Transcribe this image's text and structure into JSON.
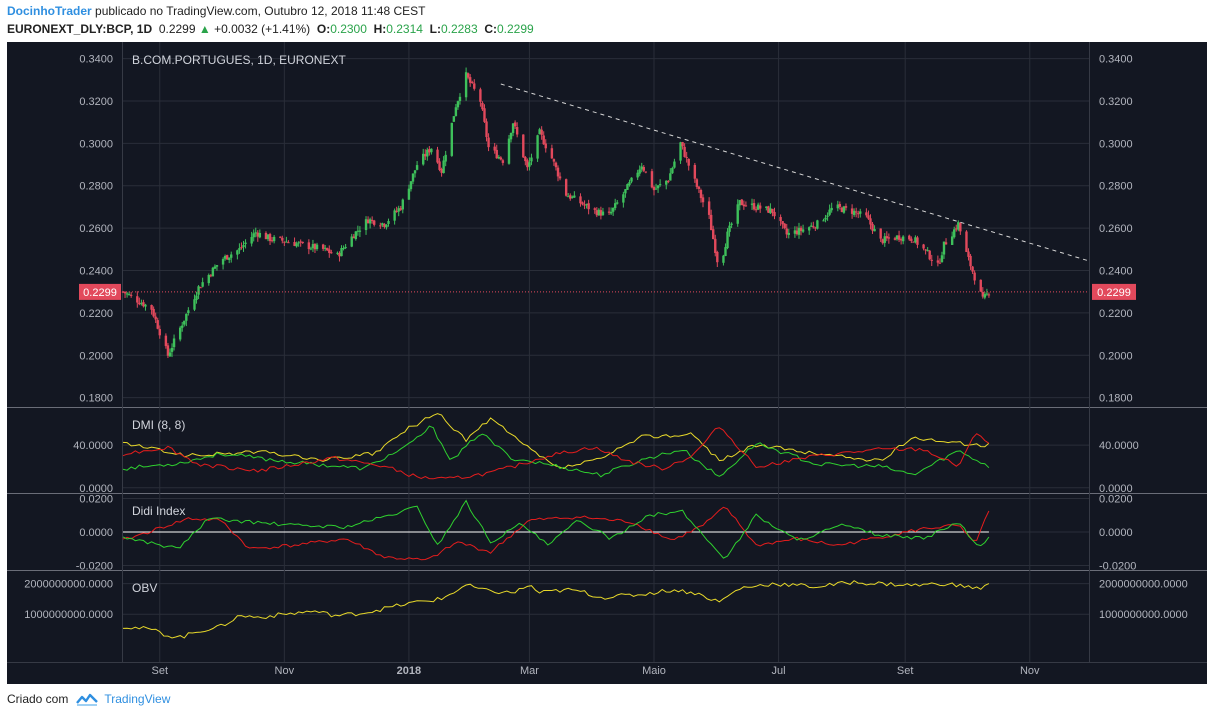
{
  "header": {
    "author": "DocinhoTrader",
    "published_text": "publicado no TradingView.com, Outubro 12, 2018 11:48 CEST",
    "symbol": "EURONEXT_DLY:BCP, 1D",
    "price": "0.2299",
    "change_icon": "up-triangle-icon",
    "change": "+0.0032 (+1.41%)",
    "o_label": "O:",
    "o_value": "0.2300",
    "h_label": "H:",
    "h_value": "0.2314",
    "l_label": "L:",
    "l_value": "0.2283",
    "c_label": "C:",
    "c_value": "0.2299"
  },
  "footer": {
    "created_with": "Criado com",
    "brand": "TradingView",
    "logo_icon": "tradingview-logo-icon"
  },
  "colors": {
    "background": "#131722",
    "grid": "#2a2e39",
    "up": "#3ec05b",
    "down": "#e2495c",
    "text": "#b2b5be",
    "yellow": "#e8d92a",
    "green": "#2fd12f",
    "red": "#e41d1d",
    "white": "#ffffff",
    "price_line": "#e2495c",
    "label_bg": "#e2495c"
  },
  "chart_data": [
    {
      "type": "candlestick",
      "pane": "price",
      "title": "B.COM.PORTUGUES, 1D, EURONEXT",
      "y_ticks": [
        "0.3400",
        "0.3200",
        "0.3000",
        "0.2800",
        "0.2600",
        "0.2400",
        "0.2200",
        "0.2000",
        "0.1800"
      ],
      "y_tick_values": [
        0.34,
        0.32,
        0.3,
        0.28,
        0.26,
        0.24,
        0.22,
        0.2,
        0.18
      ],
      "ylim": [
        0.177,
        0.345
      ],
      "x_ticks": [
        "Set",
        "Nov",
        "2018",
        "Mar",
        "Maio",
        "Jul",
        "Set",
        "Nov"
      ],
      "x_tick_dates": [
        "2017-09-01",
        "2017-11-01",
        "2018-01-01",
        "2018-03-01",
        "2018-05-01",
        "2018-07-01",
        "2018-09-01",
        "2018-11-01"
      ],
      "xlim": [
        "2017-08-14",
        "2018-11-30"
      ],
      "last_price_label": "0.2299",
      "last_price": 0.2299,
      "trendline": {
        "style": "dashed",
        "from": {
          "date": "2018-02-15",
          "price": 0.328
        },
        "to": {
          "date": "2018-11-30",
          "price": 0.2445
        }
      },
      "close_path": [
        [
          "2017-08-14",
          0.23
        ],
        [
          "2017-08-28",
          0.222
        ],
        [
          "2017-09-05",
          0.2
        ],
        [
          "2017-09-12",
          0.215
        ],
        [
          "2017-09-20",
          0.232
        ],
        [
          "2017-10-01",
          0.245
        ],
        [
          "2017-10-10",
          0.25
        ],
        [
          "2017-10-18",
          0.258
        ],
        [
          "2017-10-25",
          0.255
        ],
        [
          "2017-11-01",
          0.254
        ],
        [
          "2017-11-10",
          0.252
        ],
        [
          "2017-11-20",
          0.25
        ],
        [
          "2017-11-27",
          0.247
        ],
        [
          "2017-12-05",
          0.257
        ],
        [
          "2017-12-12",
          0.264
        ],
        [
          "2017-12-20",
          0.262
        ],
        [
          "2017-12-28",
          0.27
        ],
        [
          "2018-01-05",
          0.29
        ],
        [
          "2018-01-12",
          0.298
        ],
        [
          "2018-01-17",
          0.287
        ],
        [
          "2018-01-24",
          0.318
        ],
        [
          "2018-01-29",
          0.332
        ],
        [
          "2018-02-05",
          0.32
        ],
        [
          "2018-02-09",
          0.298
        ],
        [
          "2018-02-16",
          0.292
        ],
        [
          "2018-02-21",
          0.31
        ],
        [
          "2018-02-28",
          0.288
        ],
        [
          "2018-03-06",
          0.305
        ],
        [
          "2018-03-12",
          0.293
        ],
        [
          "2018-03-19",
          0.276
        ],
        [
          "2018-03-26",
          0.272
        ],
        [
          "2018-04-02",
          0.268
        ],
        [
          "2018-04-09",
          0.266
        ],
        [
          "2018-04-16",
          0.276
        ],
        [
          "2018-04-25",
          0.29
        ],
        [
          "2018-05-01",
          0.278
        ],
        [
          "2018-05-08",
          0.283
        ],
        [
          "2018-05-14",
          0.3
        ],
        [
          "2018-05-21",
          0.282
        ],
        [
          "2018-05-28",
          0.265
        ],
        [
          "2018-06-02",
          0.24
        ],
        [
          "2018-06-06",
          0.257
        ],
        [
          "2018-06-12",
          0.272
        ],
        [
          "2018-06-20",
          0.27
        ],
        [
          "2018-06-28",
          0.268
        ],
        [
          "2018-07-05",
          0.257
        ],
        [
          "2018-07-12",
          0.259
        ],
        [
          "2018-07-20",
          0.262
        ],
        [
          "2018-07-28",
          0.27
        ],
        [
          "2018-08-06",
          0.268
        ],
        [
          "2018-08-13",
          0.265
        ],
        [
          "2018-08-20",
          0.254
        ],
        [
          "2018-08-29",
          0.256
        ],
        [
          "2018-09-05",
          0.255
        ],
        [
          "2018-09-12",
          0.248
        ],
        [
          "2018-09-17",
          0.242
        ],
        [
          "2018-09-20",
          0.252
        ],
        [
          "2018-09-27",
          0.262
        ],
        [
          "2018-10-01",
          0.248
        ],
        [
          "2018-10-05",
          0.237
        ],
        [
          "2018-10-09",
          0.226
        ],
        [
          "2018-10-12",
          0.2299
        ]
      ]
    },
    {
      "type": "line",
      "pane": "DMI",
      "title": "DMI (8, 8)",
      "y_ticks": [
        "40.0000",
        "0.0000"
      ],
      "y_tick_values": [
        40,
        0
      ],
      "ylim": [
        -3,
        73
      ],
      "series": [
        {
          "color": "yellow",
          "points": [
            [
              "2017-08-14",
              42
            ],
            [
              "2017-09-15",
              30
            ],
            [
              "2017-10-20",
              34
            ],
            [
              "2017-11-20",
              26
            ],
            [
              "2017-12-15",
              32
            ],
            [
              "2018-01-01",
              56
            ],
            [
              "2018-01-15",
              70
            ],
            [
              "2018-01-29",
              45
            ],
            [
              "2018-02-10",
              65
            ],
            [
              "2018-02-25",
              42
            ],
            [
              "2018-03-15",
              18
            ],
            [
              "2018-04-05",
              27
            ],
            [
              "2018-04-25",
              48
            ],
            [
              "2018-05-20",
              50
            ],
            [
              "2018-06-02",
              26
            ],
            [
              "2018-06-20",
              40
            ],
            [
              "2018-07-20",
              32
            ],
            [
              "2018-08-20",
              25
            ],
            [
              "2018-09-05",
              48
            ],
            [
              "2018-09-25",
              42
            ],
            [
              "2018-10-12",
              40
            ]
          ]
        },
        {
          "color": "green",
          "points": [
            [
              "2017-08-14",
              18
            ],
            [
              "2017-09-10",
              23
            ],
            [
              "2017-10-01",
              32
            ],
            [
              "2017-11-05",
              24
            ],
            [
              "2017-12-10",
              18
            ],
            [
              "2018-01-01",
              40
            ],
            [
              "2018-01-12",
              58
            ],
            [
              "2018-01-22",
              25
            ],
            [
              "2018-02-05",
              52
            ],
            [
              "2018-02-20",
              28
            ],
            [
              "2018-03-10",
              22
            ],
            [
              "2018-04-05",
              12
            ],
            [
              "2018-04-28",
              28
            ],
            [
              "2018-05-15",
              36
            ],
            [
              "2018-06-02",
              10
            ],
            [
              "2018-06-20",
              42
            ],
            [
              "2018-07-20",
              22
            ],
            [
              "2018-08-20",
              20
            ],
            [
              "2018-09-05",
              12
            ],
            [
              "2018-09-27",
              35
            ],
            [
              "2018-10-12",
              20
            ]
          ]
        },
        {
          "color": "red",
          "points": [
            [
              "2017-08-14",
              32
            ],
            [
              "2017-09-05",
              38
            ],
            [
              "2017-09-20",
              22
            ],
            [
              "2017-10-20",
              16
            ],
            [
              "2017-11-25",
              28
            ],
            [
              "2017-12-20",
              20
            ],
            [
              "2018-01-05",
              10
            ],
            [
              "2018-01-20",
              8
            ],
            [
              "2018-02-10",
              14
            ],
            [
              "2018-02-25",
              22
            ],
            [
              "2018-03-10",
              30
            ],
            [
              "2018-04-01",
              38
            ],
            [
              "2018-04-20",
              24
            ],
            [
              "2018-05-05",
              18
            ],
            [
              "2018-05-20",
              30
            ],
            [
              "2018-06-02",
              58
            ],
            [
              "2018-06-20",
              20
            ],
            [
              "2018-07-20",
              30
            ],
            [
              "2018-08-20",
              36
            ],
            [
              "2018-09-10",
              36
            ],
            [
              "2018-09-27",
              20
            ],
            [
              "2018-10-06",
              52
            ],
            [
              "2018-10-12",
              42
            ]
          ]
        }
      ]
    },
    {
      "type": "line",
      "pane": "Didi Index",
      "title": "Didi Index",
      "y_ticks": [
        "0.0200",
        "0.0000",
        "-0.0200"
      ],
      "y_tick_values": [
        0.02,
        0,
        -0.02
      ],
      "ylim": [
        -0.0215,
        0.0215
      ],
      "baseline": 0,
      "series": [
        {
          "color": "red",
          "points": [
            [
              "2017-08-14",
              -0.005
            ],
            [
              "2017-09-15",
              0.008
            ],
            [
              "2017-10-01",
              0.007
            ],
            [
              "2017-10-15",
              -0.01
            ],
            [
              "2017-11-05",
              -0.008
            ],
            [
              "2017-12-01",
              -0.004
            ],
            [
              "2017-12-20",
              -0.015
            ],
            [
              "2018-01-10",
              -0.017
            ],
            [
              "2018-01-25",
              -0.006
            ],
            [
              "2018-02-10",
              -0.012
            ],
            [
              "2018-03-01",
              0.007
            ],
            [
              "2018-03-25",
              0.009
            ],
            [
              "2018-04-20",
              0.006
            ],
            [
              "2018-05-10",
              -0.005
            ],
            [
              "2018-05-25",
              0.004
            ],
            [
              "2018-06-05",
              0.015
            ],
            [
              "2018-06-20",
              -0.008
            ],
            [
              "2018-07-10",
              -0.004
            ],
            [
              "2018-07-30",
              -0.008
            ],
            [
              "2018-08-20",
              -0.003
            ],
            [
              "2018-09-10",
              0.002
            ],
            [
              "2018-09-27",
              0.004
            ],
            [
              "2018-10-05",
              -0.007
            ],
            [
              "2018-10-12",
              0.012
            ]
          ]
        },
        {
          "color": "green",
          "points": [
            [
              "2017-08-14",
              -0.003
            ],
            [
              "2017-09-10",
              -0.01
            ],
            [
              "2017-09-25",
              0.008
            ],
            [
              "2017-10-15",
              0.006
            ],
            [
              "2017-11-05",
              0.004
            ],
            [
              "2017-12-01",
              0.003
            ],
            [
              "2017-12-20",
              0.009
            ],
            [
              "2018-01-05",
              0.015
            ],
            [
              "2018-01-15",
              -0.008
            ],
            [
              "2018-01-29",
              0.018
            ],
            [
              "2018-02-10",
              -0.006
            ],
            [
              "2018-02-25",
              0.005
            ],
            [
              "2018-03-10",
              -0.008
            ],
            [
              "2018-03-25",
              0.007
            ],
            [
              "2018-04-10",
              -0.004
            ],
            [
              "2018-04-28",
              0.01
            ],
            [
              "2018-05-15",
              0.012
            ],
            [
              "2018-05-28",
              -0.006
            ],
            [
              "2018-06-05",
              -0.016
            ],
            [
              "2018-06-20",
              0.01
            ],
            [
              "2018-07-10",
              -0.005
            ],
            [
              "2018-08-01",
              0.004
            ],
            [
              "2018-08-20",
              -0.002
            ],
            [
              "2018-09-10",
              -0.004
            ],
            [
              "2018-09-27",
              0.006
            ],
            [
              "2018-10-07",
              -0.01
            ],
            [
              "2018-10-12",
              -0.004
            ]
          ]
        }
      ]
    },
    {
      "type": "line",
      "pane": "OBV",
      "title": "OBV",
      "y_ticks": [
        "2000000000.0000",
        "1000000000.0000"
      ],
      "y_tick_values": [
        2000000000,
        1000000000
      ],
      "ylim": [
        -500000000,
        2350000000
      ],
      "series": [
        {
          "color": "yellow",
          "points": [
            [
              "2017-08-14",
              600000000
            ],
            [
              "2017-08-28",
              500000000
            ],
            [
              "2017-09-05",
              300000000
            ],
            [
              "2017-09-12",
              250000000
            ],
            [
              "2017-09-20",
              450000000
            ],
            [
              "2017-10-01",
              600000000
            ],
            [
              "2017-10-10",
              950000000
            ],
            [
              "2017-10-20",
              900000000
            ],
            [
              "2017-11-01",
              1000000000
            ],
            [
              "2017-11-15",
              1100000000
            ],
            [
              "2017-11-27",
              950000000
            ],
            [
              "2017-12-10",
              1050000000
            ],
            [
              "2017-12-28",
              1300000000
            ],
            [
              "2018-01-05",
              1400000000
            ],
            [
              "2018-01-17",
              1500000000
            ],
            [
              "2018-01-29",
              1950000000
            ],
            [
              "2018-02-09",
              1750000000
            ],
            [
              "2018-02-21",
              1700000000
            ],
            [
              "2018-03-01",
              1950000000
            ],
            [
              "2018-03-06",
              1700000000
            ],
            [
              "2018-03-19",
              1800000000
            ],
            [
              "2018-03-26",
              1750000000
            ],
            [
              "2018-04-05",
              1550000000
            ],
            [
              "2018-04-25",
              1650000000
            ],
            [
              "2018-05-10",
              1800000000
            ],
            [
              "2018-05-21",
              1700000000
            ],
            [
              "2018-06-02",
              1400000000
            ],
            [
              "2018-06-12",
              1850000000
            ],
            [
              "2018-06-28",
              2000000000
            ],
            [
              "2018-07-20",
              1900000000
            ],
            [
              "2018-08-06",
              2050000000
            ],
            [
              "2018-08-20",
              2000000000
            ],
            [
              "2018-09-05",
              1950000000
            ],
            [
              "2018-09-20",
              2000000000
            ],
            [
              "2018-10-01",
              1900000000
            ],
            [
              "2018-10-09",
              1850000000
            ],
            [
              "2018-10-12",
              2000000000
            ]
          ]
        }
      ]
    }
  ]
}
